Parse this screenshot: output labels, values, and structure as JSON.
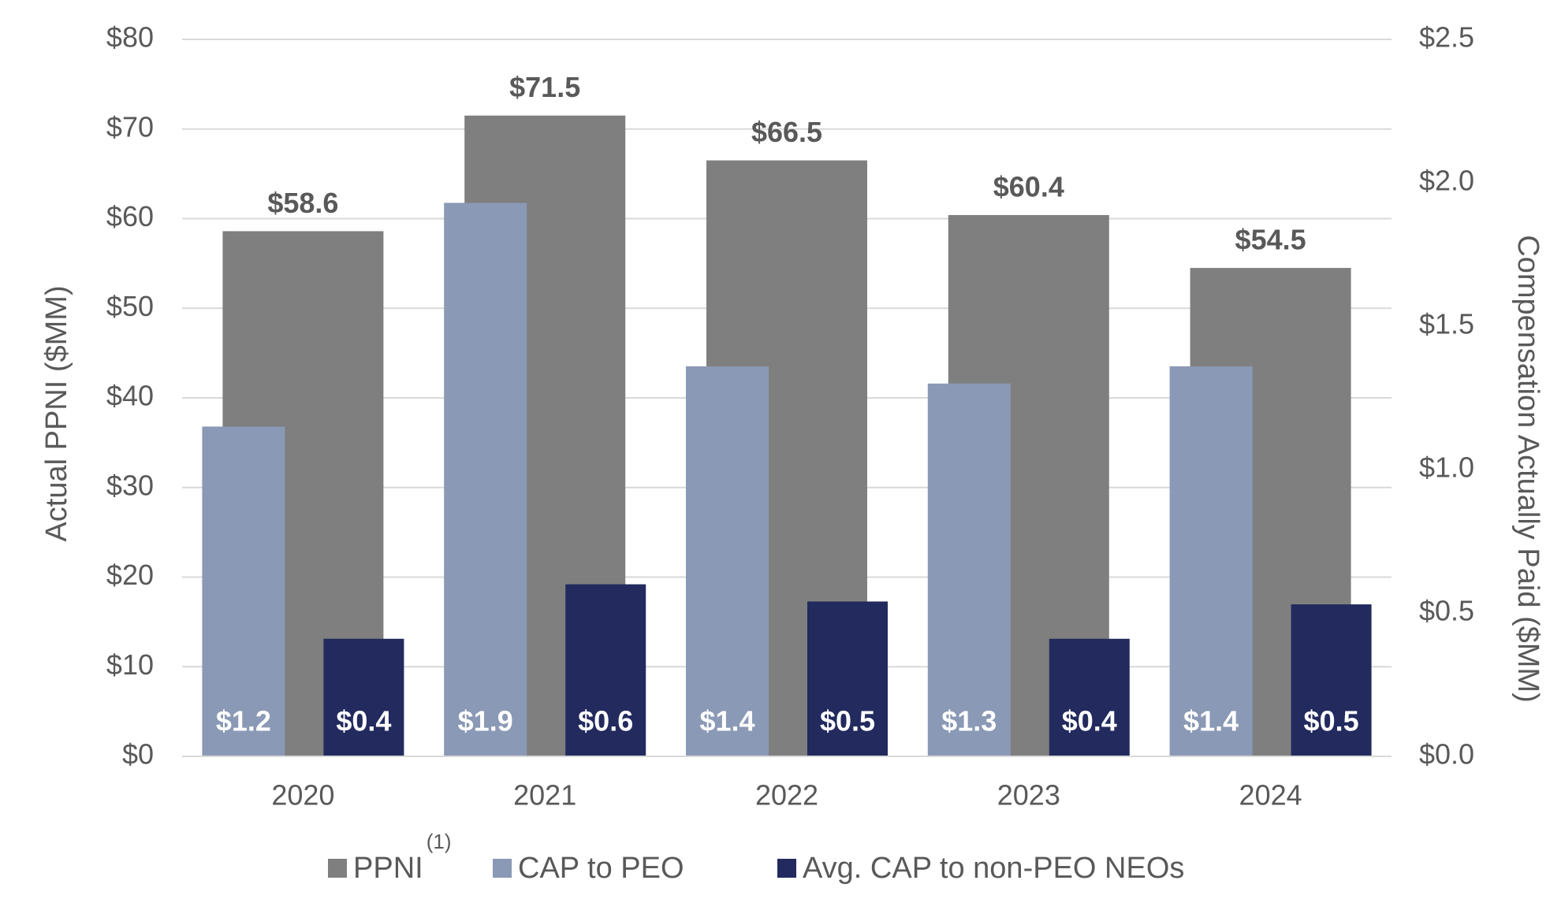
{
  "chart_data": {
    "type": "bar",
    "categories": [
      "2020",
      "2021",
      "2022",
      "2023",
      "2024"
    ],
    "ylabel": "Actual PPNI ($MM)",
    "y2label": "Compensation Actually Paid ($MM)",
    "ylim": [
      0,
      80
    ],
    "yticks": [
      {
        "value": 0,
        "label": "$0"
      },
      {
        "value": 10,
        "label": "$10"
      },
      {
        "value": 20,
        "label": "$20"
      },
      {
        "value": 30,
        "label": "$30"
      },
      {
        "value": 40,
        "label": "$40"
      },
      {
        "value": 50,
        "label": "$50"
      },
      {
        "value": 60,
        "label": "$60"
      },
      {
        "value": 70,
        "label": "$70"
      },
      {
        "value": 80,
        "label": "$80"
      }
    ],
    "y2lim": [
      0,
      2.5
    ],
    "y2ticks": [
      {
        "value": 0,
        "label": "$0.0"
      },
      {
        "value": 0.5,
        "label": "$0.5"
      },
      {
        "value": 1,
        "label": "$1.0"
      },
      {
        "value": 1.5,
        "label": "$1.5"
      },
      {
        "value": 2,
        "label": "$2.0"
      },
      {
        "value": 2.5,
        "label": "$2.5"
      }
    ],
    "grid": true,
    "legend": "bottom",
    "series": [
      {
        "name": "PPNI",
        "superscript": "(1)",
        "color": "#7f7f7f",
        "axis": "y",
        "values": [
          58.6,
          71.5,
          66.5,
          60.4,
          54.5
        ],
        "value_labels": [
          "$58.6",
          "$71.5",
          "$66.5",
          "$60.4",
          "$54.5"
        ]
      },
      {
        "name": "CAP to PEO",
        "color": "#8a99b5",
        "axis": "y2",
        "values": [
          1.15,
          1.93,
          1.36,
          1.3,
          1.36
        ],
        "value_labels": [
          "$1.2",
          "$1.9",
          "$1.4",
          "$1.3",
          "$1.4"
        ]
      },
      {
        "name": "Avg. CAP to non-PEO NEOs",
        "color": "#222a5e",
        "axis": "y2",
        "values": [
          0.41,
          0.6,
          0.54,
          0.41,
          0.53
        ],
        "value_labels": [
          "$0.4",
          "$0.6",
          "$0.5",
          "$0.4",
          "$0.5"
        ]
      }
    ]
  }
}
